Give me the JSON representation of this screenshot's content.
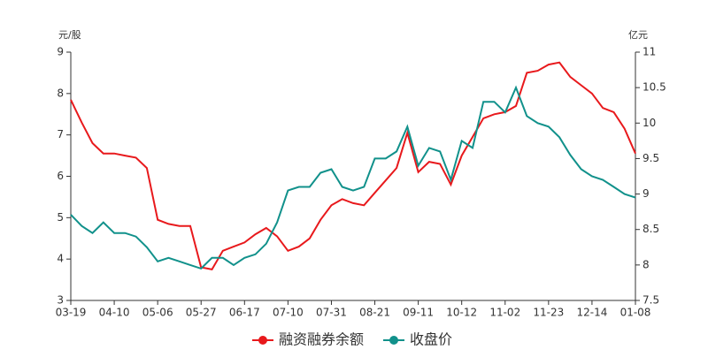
{
  "chart_data": {
    "type": "line",
    "y_unit": "元/股",
    "y2_unit": "亿元",
    "categories": [
      "03-19",
      null,
      null,
      null,
      "04-10",
      null,
      null,
      null,
      "05-06",
      null,
      null,
      null,
      "05-27",
      null,
      null,
      null,
      "06-17",
      null,
      null,
      null,
      "07-10",
      null,
      null,
      null,
      "07-31",
      null,
      null,
      null,
      "08-21",
      null,
      null,
      null,
      "09-11",
      null,
      null,
      null,
      "10-12",
      null,
      null,
      null,
      "11-02",
      null,
      null,
      null,
      "11-23",
      null,
      null,
      null,
      "12-14",
      null,
      null,
      null,
      "01-08"
    ],
    "series": [
      {
        "name": "融资融券余额",
        "color": "#e8191c",
        "axis": "y",
        "values": [
          7.85,
          7.3,
          6.8,
          6.55,
          6.55,
          6.5,
          6.45,
          6.2,
          4.95,
          4.85,
          4.8,
          4.8,
          3.8,
          3.75,
          4.2,
          4.3,
          4.4,
          4.6,
          4.75,
          4.55,
          4.2,
          4.3,
          4.5,
          4.95,
          5.3,
          5.45,
          5.35,
          5.3,
          5.6,
          5.9,
          6.2,
          7.05,
          6.1,
          6.35,
          6.3,
          5.8,
          6.5,
          6.95,
          7.4,
          7.5,
          7.55,
          7.7,
          8.5,
          8.55,
          8.7,
          8.75,
          8.4,
          8.2,
          8.0,
          7.65,
          7.55,
          7.15,
          6.55
        ]
      },
      {
        "name": "收盘价",
        "color": "#11918b",
        "axis": "y2",
        "values": [
          8.71,
          8.55,
          8.45,
          8.6,
          8.45,
          8.45,
          8.4,
          8.25,
          8.05,
          8.1,
          8.05,
          8.0,
          7.95,
          8.1,
          8.1,
          8.0,
          8.1,
          8.15,
          8.3,
          8.6,
          9.05,
          9.1,
          9.1,
          9.3,
          9.35,
          9.1,
          9.05,
          9.1,
          9.5,
          9.5,
          9.6,
          9.95,
          9.4,
          9.65,
          9.6,
          9.2,
          9.75,
          9.65,
          10.3,
          10.3,
          10.15,
          10.5,
          10.1,
          10.0,
          9.95,
          9.8,
          9.55,
          9.35,
          9.25,
          9.2,
          9.1,
          9.0,
          8.95
        ]
      }
    ],
    "ylim": [
      3,
      9
    ],
    "yticks": [
      3,
      4,
      5,
      6,
      7,
      8,
      9
    ],
    "y2lim": [
      7.5,
      11
    ],
    "y2ticks": [
      7.5,
      8,
      8.5,
      9,
      9.5,
      10,
      10.5,
      11
    ],
    "legend": "bottom"
  }
}
